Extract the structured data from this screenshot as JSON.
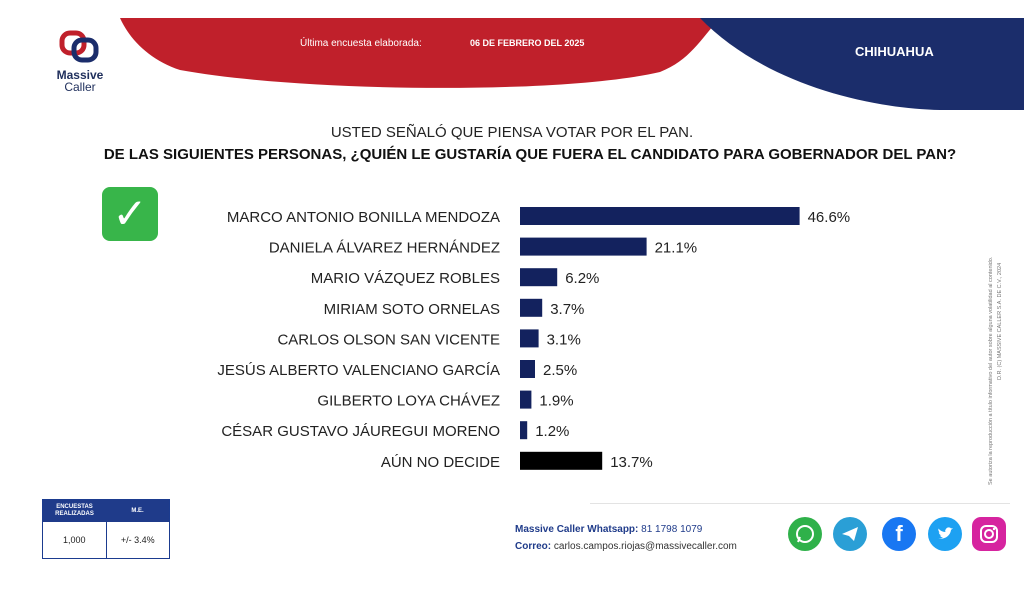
{
  "header": {
    "brand_line1": "Massive",
    "brand_line2": "Caller",
    "survey_label": "Última encuesta elaborada:",
    "survey_date": "06 DE FEBRERO DEL 2025",
    "region": "CHIHUAHUA",
    "colors": {
      "red": "#c0202b",
      "navy": "#1b2d6b"
    }
  },
  "question": {
    "intro": "USTED SEÑALÓ QUE PIENSA VOTAR POR EL PAN.",
    "text": "DE LAS SIGUIENTES PERSONAS, ¿QUIÉN LE GUSTARÍA QUE FUERA EL CANDIDATO PARA GOBERNADOR DEL PAN?"
  },
  "chart_data": {
    "type": "bar",
    "orientation": "horizontal",
    "categories": [
      "MARCO ANTONIO BONILLA MENDOZA",
      "DANIELA ÁLVAREZ HERNÁNDEZ",
      "MARIO VÁZQUEZ ROBLES",
      "MIRIAM SOTO ORNELAS",
      "CARLOS OLSON SAN VICENTE",
      "JESÚS ALBERTO VALENCIANO GARCÍA",
      "GILBERTO LOYA CHÁVEZ",
      "CÉSAR GUSTAVO JÁUREGUI MORENO",
      "AÚN NO DECIDE"
    ],
    "values": [
      46.6,
      21.1,
      6.2,
      3.7,
      3.1,
      2.5,
      1.9,
      1.2,
      13.7
    ],
    "value_labels": [
      "46.6%",
      "21.1%",
      "6.2%",
      "3.7%",
      "3.1%",
      "2.5%",
      "1.9%",
      "1.2%",
      "13.7%"
    ],
    "bar_colors": [
      "#13225e",
      "#13225e",
      "#13225e",
      "#13225e",
      "#13225e",
      "#13225e",
      "#13225e",
      "#13225e",
      "#000000"
    ],
    "highlighted_index": 0,
    "highlight_icon": "check-mark-icon",
    "xlim": [
      0,
      50
    ]
  },
  "side_note": {
    "line1": "Se autoriza la reproducción a título informativo del autor sobre alguna volatilidad al contenido.",
    "line2": "D.R. (C) MASSIVE CALLER S.A. DE C.V., 2024"
  },
  "stats": {
    "header_surveys": "ENCUESTAS REALIZADAS",
    "header_me": "M.E.",
    "surveys": "1,000",
    "margin": "+/- 3.4%"
  },
  "contact": {
    "whatsapp_label": "Massive Caller Whatsapp:",
    "whatsapp_value": "81 1798 1079",
    "email_label": "Correo:",
    "email_value": "carlos.campos.riojas@massivecaller.com"
  },
  "social_icons": [
    "whatsapp-icon",
    "telegram-icon",
    "facebook-icon",
    "twitter-icon",
    "instagram-icon"
  ]
}
